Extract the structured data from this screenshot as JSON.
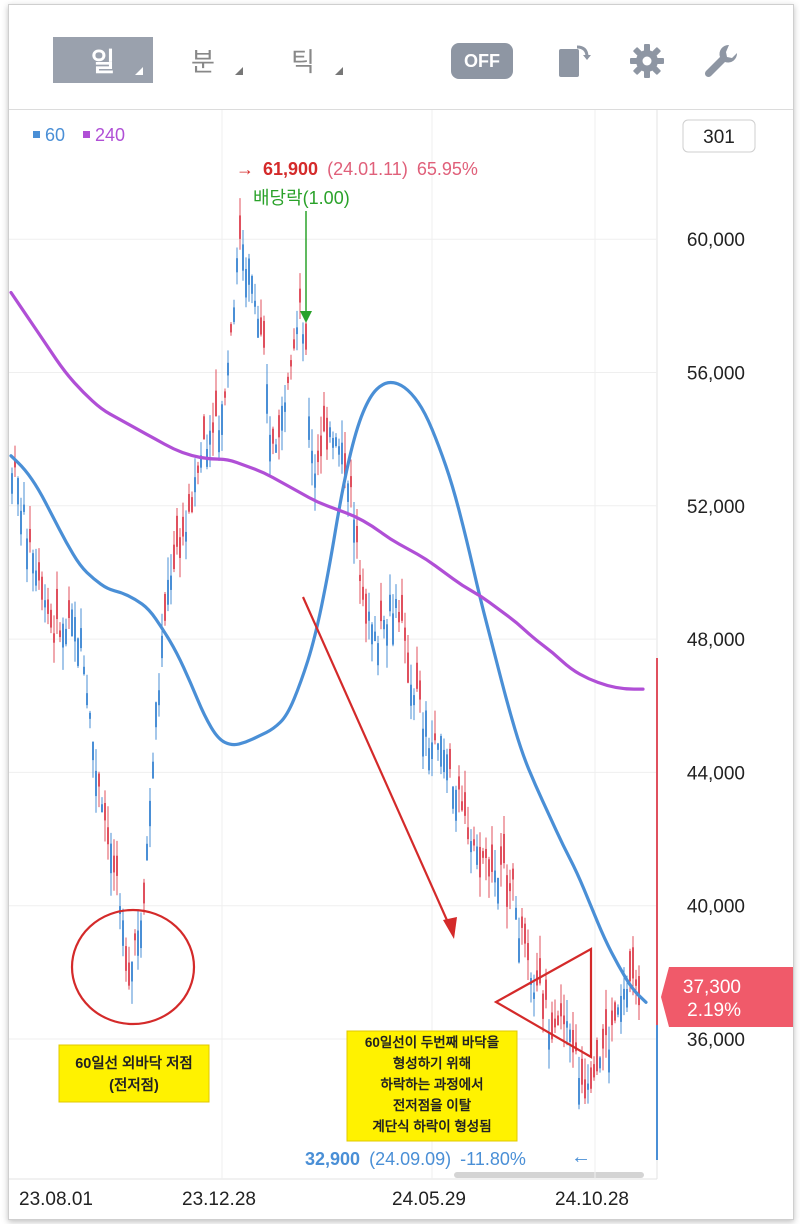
{
  "toolbar": {
    "tabs": [
      {
        "label": "일",
        "active": true
      },
      {
        "label": "분",
        "active": false
      },
      {
        "label": "틱",
        "active": false
      }
    ],
    "off_label": "OFF",
    "icons": [
      "rotate-screen-icon",
      "gear-icon",
      "wrench-icon"
    ]
  },
  "colors": {
    "ma60": "#4a8fd6",
    "ma240": "#b04fd6",
    "up": "#e0505e",
    "down": "#4a8fd6",
    "annotation_red": "#d42a2a",
    "current_badge": "#f05a6a"
  },
  "chart_data": {
    "type": "line",
    "x_tick_labels": [
      "23.08.01",
      "23.12.28",
      "24.05.29",
      "24.10.28"
    ],
    "y_ticks": [
      36000,
      40000,
      44000,
      48000,
      52000,
      56000,
      60000
    ],
    "y_tick_labels": [
      "36,000",
      "40,000",
      "44,000",
      "48,000",
      "52,000",
      "56,000",
      "60,000"
    ],
    "ylim": [
      32000,
      63000
    ],
    "legend": [
      {
        "name": "60",
        "color": "#4a8fd6"
      },
      {
        "name": "240",
        "color": "#b04fd6"
      }
    ],
    "period_box": "301",
    "series": [
      {
        "name": "60",
        "values": [
          53500,
          53100,
          52500,
          51700,
          50900,
          50200,
          49800,
          49500,
          49400,
          49200,
          48900,
          48300,
          47600,
          46700,
          45700,
          45000,
          44800,
          44900,
          45100,
          45300,
          45700,
          46700,
          48000,
          50000,
          52500,
          54300,
          55300,
          55700,
          55700,
          55400,
          54800,
          53800,
          52600,
          51000,
          49200,
          47600,
          46000,
          44600,
          43600,
          42700,
          41800,
          41000,
          40000,
          39000,
          38200,
          37500,
          37100
        ]
      },
      {
        "name": "240",
        "values": [
          58400,
          57600,
          56800,
          56000,
          55400,
          54900,
          54600,
          54300,
          54000,
          53700,
          53500,
          53400,
          53400,
          53200,
          53000,
          52700,
          52400,
          52100,
          51900,
          51700,
          51400,
          51000,
          50700,
          50400,
          50000,
          49600,
          49300,
          48900,
          48500,
          48000,
          47600,
          47100,
          46800,
          46600,
          46500,
          46500
        ]
      }
    ],
    "high": {
      "arrow": "→",
      "price": "61,900",
      "date": "(24.01.11)",
      "pct": "65.95%"
    },
    "low": {
      "price": "32,900",
      "date": "(24.09.09)",
      "pct": "-11.80%",
      "arrow": "←"
    },
    "dividend_label": "배당락(1.00)",
    "current": {
      "price": "37,300",
      "pct": "2.19%"
    },
    "notes": {
      "left": [
        "60일선 외바닥 저점",
        "(전저점)"
      ],
      "right": [
        "60일선이 두번째 바닥을",
        "형성하기 위해",
        "하락하는 과정에서",
        "전저점을 이탈",
        "계단식 하락이 형성됨"
      ]
    }
  }
}
